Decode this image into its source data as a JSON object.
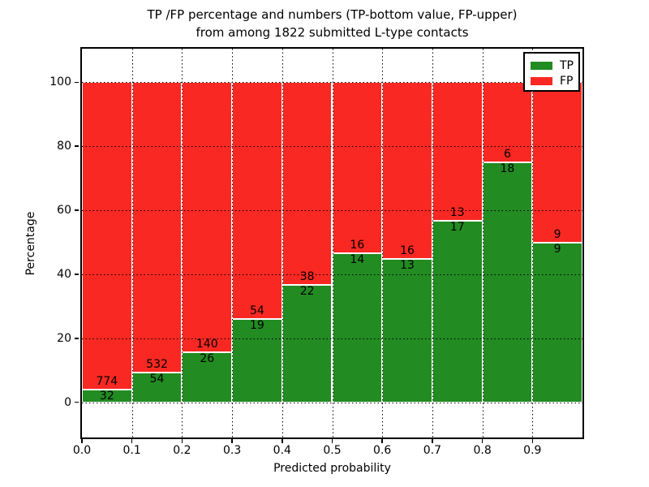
{
  "chart_data": {
    "type": "bar",
    "stacked": true,
    "title_line1": "TP /FP percentage and numbers (TP-bottom value, FP-upper)",
    "title_line2": "from among 1822 submitted L-type contacts",
    "xlabel": "Predicted probability",
    "ylabel": "Percentage",
    "xlim": [
      0.0,
      1.0
    ],
    "ylim": [
      -11,
      110.5
    ],
    "x_ticks": [
      "0.0",
      "0.1",
      "0.2",
      "0.3",
      "0.4",
      "0.5",
      "0.6",
      "0.7",
      "0.8",
      "0.9"
    ],
    "y_ticks": [
      0,
      20,
      40,
      60,
      80,
      100
    ],
    "grid": "dotted, drawn over bars",
    "legend_position": "upper right",
    "bin_width": 0.1,
    "bins": [
      {
        "x_start": 0.0,
        "x_end": 0.1,
        "tp": 32,
        "fp": 774,
        "tp_pct": 3.97
      },
      {
        "x_start": 0.1,
        "x_end": 0.2,
        "tp": 54,
        "fp": 532,
        "tp_pct": 9.22
      },
      {
        "x_start": 0.2,
        "x_end": 0.3,
        "tp": 26,
        "fp": 140,
        "tp_pct": 15.66
      },
      {
        "x_start": 0.3,
        "x_end": 0.4,
        "tp": 19,
        "fp": 54,
        "tp_pct": 26.03
      },
      {
        "x_start": 0.4,
        "x_end": 0.5,
        "tp": 22,
        "fp": 38,
        "tp_pct": 36.67
      },
      {
        "x_start": 0.5,
        "x_end": 0.6,
        "tp": 14,
        "fp": 16,
        "tp_pct": 46.67
      },
      {
        "x_start": 0.6,
        "x_end": 0.7,
        "tp": 13,
        "fp": 16,
        "tp_pct": 44.83
      },
      {
        "x_start": 0.7,
        "x_end": 0.8,
        "tp": 17,
        "fp": 13,
        "tp_pct": 56.67
      },
      {
        "x_start": 0.8,
        "x_end": 0.9,
        "tp": 18,
        "fp": 6,
        "tp_pct": 75.0
      },
      {
        "x_start": 0.9,
        "x_end": 1.0,
        "tp": 9,
        "fp": 9,
        "tp_pct": 50.0
      }
    ],
    "legend": [
      {
        "label": "TP",
        "color": "#228b22"
      },
      {
        "label": "FP",
        "color": "#f92822"
      }
    ],
    "colors": {
      "tp": "#228b22",
      "fp": "#f92822",
      "bar_edge": "#ffffff",
      "grid": "#000000",
      "spine": "#000000",
      "background": "#ffffff"
    }
  }
}
